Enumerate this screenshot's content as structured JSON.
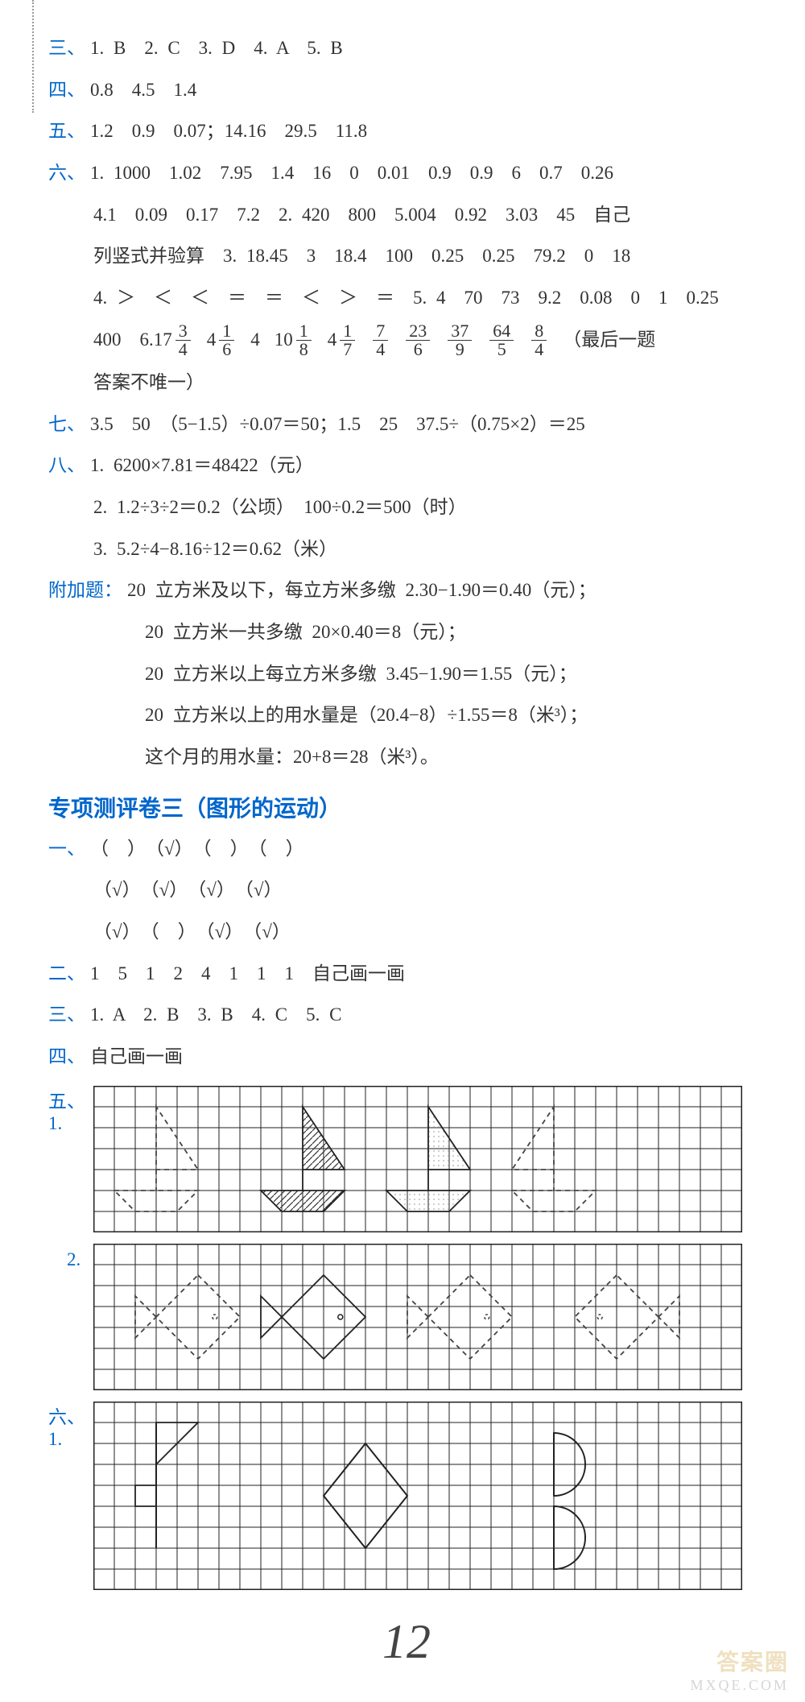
{
  "dotted_left": true,
  "lines": {
    "san": {
      "label": "三、",
      "text": "1. B　2. C　3. D　4. A　5. B"
    },
    "si": {
      "label": "四、",
      "text": "0.8　4.5　1.4"
    },
    "wu": {
      "label": "五、",
      "text": "1.2　0.9　0.07；14.16　29.5　11.8"
    },
    "liu1": {
      "label": "六、",
      "text": "1. 1000　1.02　7.95　1.4　16　0　0.01　0.9　0.9　6　0.7　0.26"
    },
    "liu2": {
      "text": "4.1　0.09　0.17　7.2　2. 420　800　5.004　0.92　3.03　45　自己"
    },
    "liu3": {
      "text": "列竖式并验算　3. 18.45　3　18.4　100　0.25　0.25　79.2　0　18"
    },
    "liu4": {
      "text": "4. ＞　＜　＜　＝　＝　＜　＞　＝　5. 4　70　73　9.2　0.08　0　1　0.25"
    },
    "liu5_prefix": "400　6. ",
    "liu5_fractions": [
      {
        "whole": "17",
        "num": "3",
        "den": "4"
      },
      {
        "whole": "4",
        "num": "1",
        "den": "6"
      },
      {
        "whole": "4",
        "num": "",
        "den": ""
      },
      {
        "whole": "10",
        "num": "1",
        "den": "8"
      },
      {
        "whole": "4",
        "num": "1",
        "den": "7"
      },
      {
        "whole": "",
        "num": "7",
        "den": "4"
      },
      {
        "whole": "",
        "num": "23",
        "den": "6"
      },
      {
        "whole": "",
        "num": "37",
        "den": "9"
      },
      {
        "whole": "",
        "num": "64",
        "den": "5"
      },
      {
        "whole": "",
        "num": "8",
        "den": "4"
      }
    ],
    "liu5_suffix": "（最后一题",
    "liu6": {
      "text": "答案不唯一）"
    },
    "qi": {
      "label": "七、",
      "text": "3.5　50　（5−1.5）÷0.07＝50；1.5　25　37.5÷（0.75×2）＝25"
    },
    "ba1": {
      "label": "八、",
      "text": "1. 6200×7.81＝48422（元）"
    },
    "ba2": {
      "text": "2. 1.2÷3÷2＝0.2（公顷）　100÷0.2＝500（时）"
    },
    "ba3": {
      "text": "3. 5.2÷4−8.16÷12＝0.62（米）"
    },
    "fujia_label": "附加题：",
    "fujia1": "20 立方米及以下，每立方米多缴 2.30−1.90＝0.40（元）；",
    "fujia2": "20 立方米一共多缴 20×0.40＝8（元）；",
    "fujia3": "20 立方米以上每立方米多缴 3.45−1.90＝1.55（元）；",
    "fujia4": "20 立方米以上的用水量是（20.4−8）÷1.55＝8（米³）；",
    "fujia5": "这个月的用水量：20+8＝28（米³）。"
  },
  "section2_heading": "专项测评卷三（图形的运动）",
  "s2_yi1": {
    "label": "一、",
    "text": "（　）　（√）　（　）　（　）"
  },
  "s2_yi2": {
    "text": "（√）　（√）　（√）　（√）"
  },
  "s2_yi3": {
    "text": "（√）　（　）　（√）　（√）"
  },
  "s2_er": {
    "label": "二、",
    "text": "1　5　1　2　4　1　1　1　自己画一画"
  },
  "s2_san": {
    "label": "三、",
    "text": "1. A　2. B　3. B　4. C　5. C"
  },
  "s2_si": {
    "label": "四、",
    "text": "自己画一画"
  },
  "s2_wu": {
    "label": "五、",
    "text": ""
  },
  "s2_liu": {
    "label": "六、",
    "text": ""
  },
  "grids": {
    "g1": {
      "cols": 31,
      "rows": 7,
      "cell": 26
    },
    "g2": {
      "cols": 31,
      "rows": 7,
      "cell": 26
    },
    "g3": {
      "cols": 31,
      "rows": 9,
      "cell": 26
    }
  },
  "colors": {
    "label": "#0066cc",
    "text": "#333333",
    "bg": "#ffffff",
    "grid": "#222222",
    "hatch": "#333333",
    "dash": "#444444",
    "stipple": "#aaaaaa"
  },
  "handwritten_page": "12",
  "watermark": {
    "line1": "答案圈",
    "line2": "MXQE.COM"
  }
}
